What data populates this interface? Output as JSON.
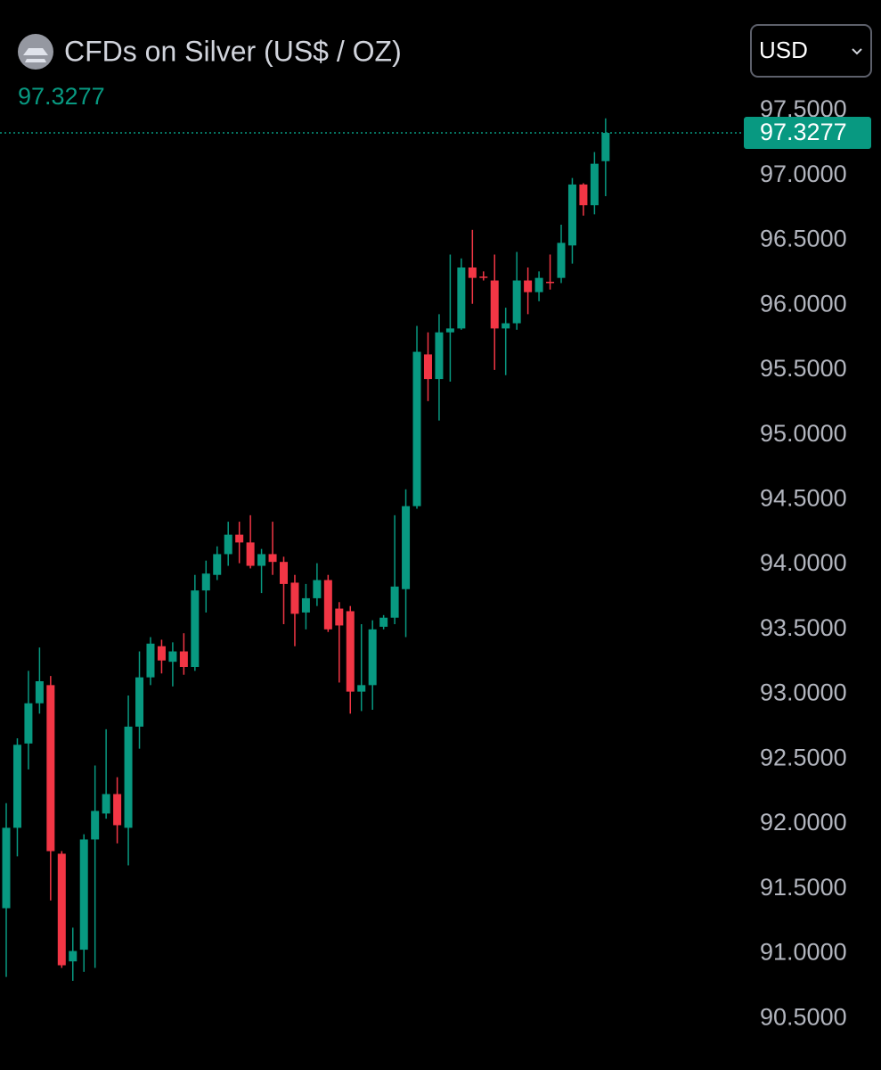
{
  "chart_data": {
    "type": "candlestick",
    "title": "CFDs on Silver (US$ / OZ)",
    "currency": "USD",
    "up_color": "#089981",
    "down_color": "#f23645",
    "ylim": [
      90.24,
      97.665
    ],
    "yticks": [
      {
        "value": 97.5,
        "label": "97.5000"
      },
      {
        "value": 97.0,
        "label": "97.0000"
      },
      {
        "value": 96.5,
        "label": "96.5000"
      },
      {
        "value": 96.0,
        "label": "96.0000"
      },
      {
        "value": 95.5,
        "label": "95.5000"
      },
      {
        "value": 95.0,
        "label": "95.0000"
      },
      {
        "value": 94.5,
        "label": "94.5000"
      },
      {
        "value": 94.0,
        "label": "94.0000"
      },
      {
        "value": 93.5,
        "label": "93.5000"
      },
      {
        "value": 93.0,
        "label": "93.0000"
      },
      {
        "value": 92.5,
        "label": "92.5000"
      },
      {
        "value": 92.0,
        "label": "92.0000"
      },
      {
        "value": 91.5,
        "label": "91.5000"
      },
      {
        "value": 91.0,
        "label": "91.0000"
      },
      {
        "value": 90.5,
        "label": "90.5000"
      }
    ],
    "open": [
      91.35,
      91.97,
      92.62,
      92.93,
      93.07,
      91.77,
      90.94,
      91.03,
      91.88,
      92.08,
      92.23,
      91.97,
      92.75,
      93.13,
      93.37,
      93.25,
      93.33,
      93.21,
      93.8,
      93.92,
      94.08,
      94.23,
      94.17,
      93.99,
      94.08,
      94.02,
      93.86,
      93.63,
      93.74,
      93.88,
      93.66,
      93.64,
      93.02,
      93.07,
      93.52,
      93.59,
      93.81,
      94.45,
      95.62,
      95.43,
      95.79,
      95.82,
      96.29,
      96.22,
      96.19,
      95.82,
      95.86,
      96.19,
      96.1,
      96.18,
      96.21,
      96.46,
      96.93,
      96.77,
      97.11
    ],
    "high": [
      92.16,
      92.66,
      93.18,
      93.36,
      93.14,
      91.79,
      91.2,
      91.92,
      92.45,
      92.73,
      92.36,
      92.99,
      93.33,
      93.44,
      93.42,
      93.4,
      93.47,
      93.92,
      94.03,
      94.14,
      94.33,
      94.33,
      94.38,
      94.12,
      94.33,
      94.06,
      93.92,
      93.85,
      94.01,
      93.92,
      93.71,
      93.68,
      93.54,
      93.57,
      93.61,
      94.38,
      94.58,
      95.84,
      95.79,
      95.93,
      96.39,
      96.36,
      96.58,
      96.26,
      96.39,
      95.98,
      96.41,
      96.29,
      96.26,
      96.39,
      96.62,
      96.98,
      96.94,
      97.18,
      97.44
    ],
    "low": [
      90.82,
      91.75,
      92.42,
      92.85,
      91.41,
      90.89,
      90.79,
      90.86,
      90.89,
      92.04,
      91.85,
      91.68,
      92.58,
      93.07,
      93.16,
      93.06,
      93.15,
      93.18,
      93.63,
      93.88,
      93.99,
      94.01,
      93.97,
      93.78,
      93.92,
      93.54,
      93.37,
      93.5,
      93.68,
      93.48,
      93.09,
      92.85,
      92.87,
      92.88,
      93.5,
      93.54,
      93.44,
      94.43,
      95.26,
      95.11,
      95.41,
      95.81,
      96.01,
      96.19,
      95.5,
      95.46,
      95.81,
      95.93,
      96.03,
      96.12,
      96.17,
      96.32,
      96.69,
      96.7,
      96.84
    ],
    "close": [
      91.97,
      92.61,
      92.93,
      93.1,
      91.79,
      90.91,
      91.02,
      91.88,
      92.1,
      92.23,
      91.99,
      92.75,
      93.13,
      93.39,
      93.26,
      93.33,
      93.21,
      93.8,
      93.93,
      94.08,
      94.23,
      94.17,
      93.99,
      94.08,
      94.02,
      93.85,
      93.62,
      93.74,
      93.88,
      93.5,
      93.53,
      93.02,
      93.07,
      93.5,
      93.59,
      93.83,
      94.45,
      95.64,
      95.43,
      95.79,
      95.82,
      96.29,
      96.21,
      96.21,
      95.82,
      95.86,
      96.19,
      96.1,
      96.21,
      96.17,
      96.48,
      96.93,
      96.77,
      97.09,
      97.3277
    ]
  }
}
